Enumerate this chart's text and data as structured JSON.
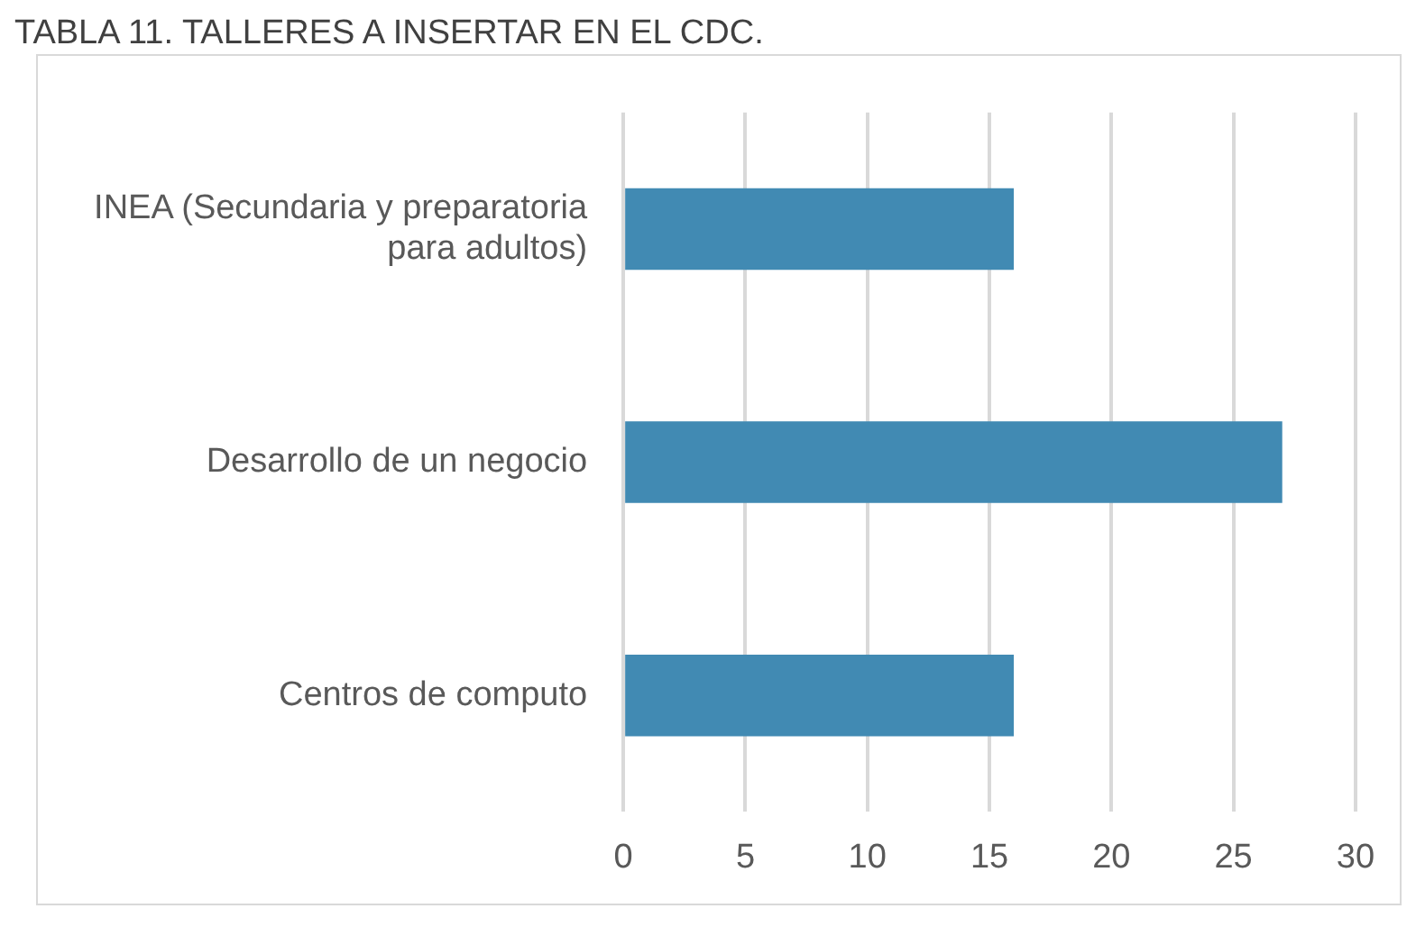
{
  "chart_data": {
    "type": "bar",
    "title": "TABLA 11. TALLERES A INSERTAR EN EL CDC.",
    "orientation": "horizontal",
    "categories": [
      "INEA (Secundaria y preparatoria para adultos)",
      "Desarrollo de un negocio",
      "Centros de computo"
    ],
    "values": [
      16,
      27,
      16
    ],
    "color": "#418ab3",
    "xlim": [
      0,
      30
    ],
    "xticks": [
      0,
      5,
      10,
      15,
      20,
      25,
      30
    ],
    "grid": "x"
  }
}
